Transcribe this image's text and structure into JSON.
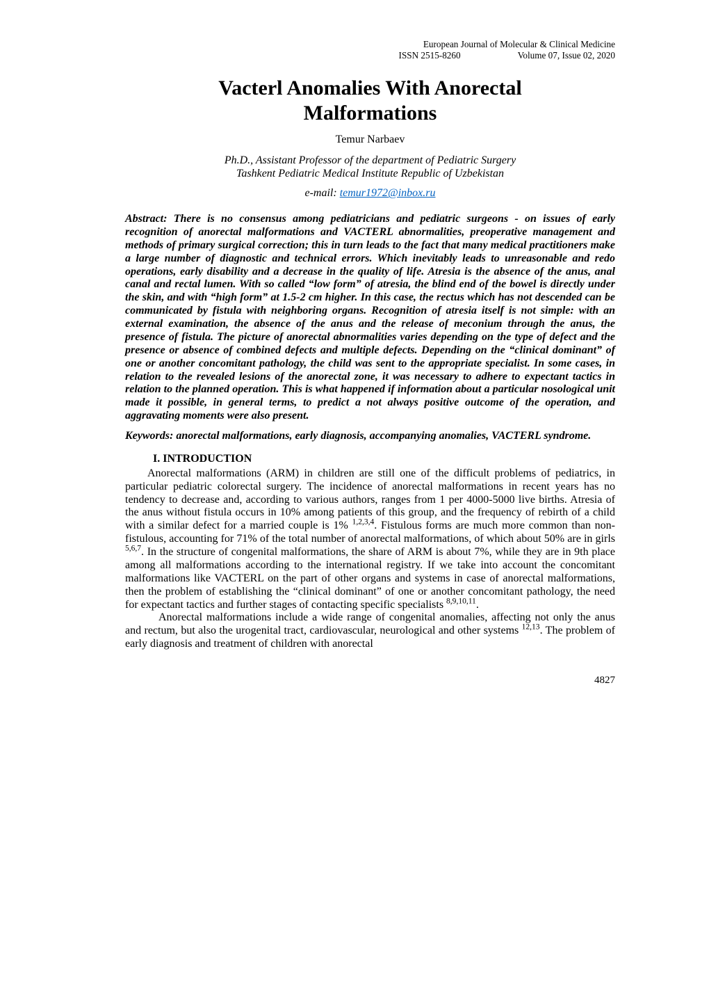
{
  "header": {
    "journal": "European Journal of Molecular & Clinical Medicine",
    "issn_label": "ISSN 2515-8260",
    "volume": "Volume 07, Issue 02, 2020"
  },
  "title_line1": "Vacterl Anomalies With Anorectal",
  "title_line2": "Malformations",
  "author": "Temur Narbaev",
  "affiliation_line1": "Ph.D., Assistant Professor of the department of Pediatric Surgery",
  "affiliation_line2": "Tashkent Pediatric Medical Institute Republic of Uzbekistan",
  "email_prefix": "e-mail: ",
  "email": "temur1972@inbox.ru",
  "abstract": "Abstract: There is no consensus among pediatricians and pediatric surgeons - on issues of early recognition of anorectal malformations and VACTERL abnormalities, preoperative management and methods of primary surgical correction; this in turn leads to the fact that many medical practitioners make a large number of diagnostic and technical errors. Which inevitably leads to unreasonable and redo operations, early disability and a decrease in the quality of life. Atresia is the absence of the anus, anal canal and rectal lumen. With so called “low form” of atresia, the blind end of the bowel is directly under the skin, and with “high form” at 1.5-2 cm higher. In this case, the rectus which has not descended can be communicated by fistula with neighboring organs. Recognition of atresia itself is not simple: with an external examination, the absence of the anus and the release of meconium through the anus, the presence of fistula. The picture of anorectal abnormalities varies depending on the type of defect and the presence or absence of combined defects and multiple defects. Depending on the “clinical dominant” of one or another concomitant pathology, the child was sent to the appropriate specialist. In some cases, in relation to the revealed lesions of the anorectal zone, it was necessary to adhere to expectant tactics in relation to the planned operation. This is what happened if information about a particular nosological unit made it possible, in general terms, to predict a not always positive outcome of the operation, and aggravating moments were also present.",
  "keywords": "Keywords: anorectal malformations, early diagnosis, accompanying anomalies, VACTERL syndrome.",
  "section1_heading": "I. INTRODUCTION",
  "p1_a": "Anorectal malformations (ARM) in children are still one of the difficult problems of pediatrics, in particular pediatric colorectal surgery. The incidence of anorectal malformations in recent years has no tendency to decrease and, according to various authors, ranges from 1 per 4000-5000 live births. Atresia of the anus without fistula occurs in 10% among patients of this group, and the frequency of rebirth of a child with a similar defect for a married couple is 1% ",
  "p1_sup1": "1,2,3,4",
  "p1_b": ". Fistulous forms are much more common than non-fistulous, accounting for 71% of the total number of anorectal malformations, of which about 50% are in girls ",
  "p1_sup2": "5,6,7",
  "p1_c": ". In the structure of congenital malformations, the share of ARM is about 7%, while they are in 9th place among all malformations according to the international registry. If we take into account the concomitant malformations like VACTERL on the part of other organs and systems in case of anorectal malformations, then the problem of establishing the “clinical dominant” of one or another concomitant pathology, the need for expectant tactics and further stages of contacting specific specialists ",
  "p1_sup3": "8,9,10,11",
  "p1_d": ".",
  "p2_a": "Anorectal malformations include a wide range of congenital anomalies, affecting not only the anus and rectum, but also the urogenital tract, cardiovascular, neurological and other systems ",
  "p2_sup1": "12,13",
  "p2_b": ". The problem of early diagnosis and treatment of children with anorectal",
  "page_number": "4827",
  "colors": {
    "text": "#000000",
    "link": "#0563c1",
    "background": "#ffffff"
  },
  "typography": {
    "base_font": "Times New Roman",
    "base_size_pt": 12,
    "title_size_pt": 22
  }
}
